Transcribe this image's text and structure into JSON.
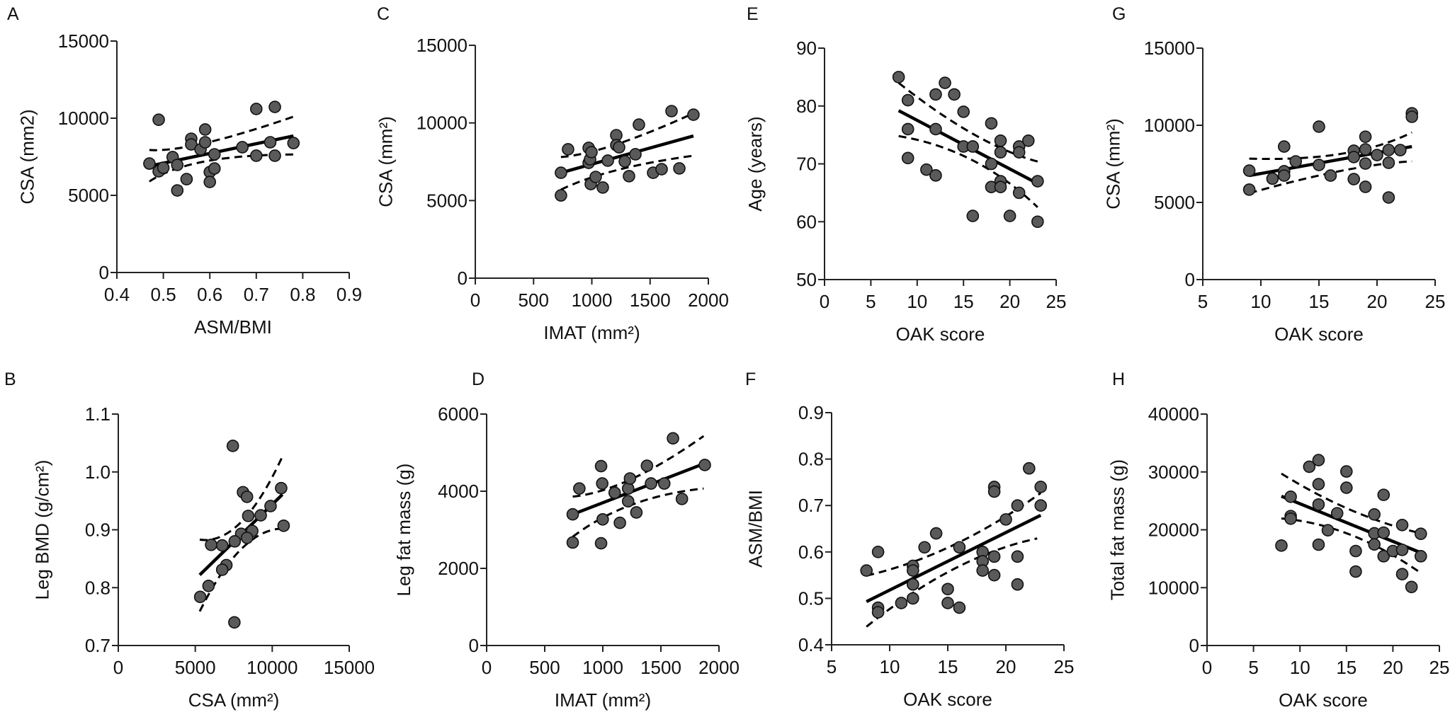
{
  "style": {
    "marker_fill": "#5a5a5a",
    "marker_stroke": "#111111",
    "line_color": "#000000"
  },
  "chart_data": [
    {
      "panel": "A",
      "type": "scatter",
      "xlabel": "ASM/BMI",
      "ylabel": "CSA (mm2)",
      "xlim": [
        0.4,
        0.9
      ],
      "ylim": [
        0,
        15000
      ],
      "xticks": [
        "0.4",
        "0.5",
        "0.6",
        "0.7",
        "0.8",
        "0.9"
      ],
      "yticks": [
        "0",
        "5000",
        "10000",
        "15000"
      ],
      "points": [
        [
          0.47,
          7060
        ],
        [
          0.49,
          9900
        ],
        [
          0.49,
          6560
        ],
        [
          0.5,
          6790
        ],
        [
          0.52,
          7480
        ],
        [
          0.53,
          6970
        ],
        [
          0.53,
          5320
        ],
        [
          0.55,
          6050
        ],
        [
          0.56,
          8670
        ],
        [
          0.56,
          8300
        ],
        [
          0.58,
          7980
        ],
        [
          0.59,
          9270
        ],
        [
          0.59,
          8440
        ],
        [
          0.6,
          6510
        ],
        [
          0.6,
          5870
        ],
        [
          0.61,
          6740
        ],
        [
          0.61,
          7660
        ],
        [
          0.67,
          8120
        ],
        [
          0.7,
          10600
        ],
        [
          0.7,
          7570
        ],
        [
          0.73,
          8440
        ],
        [
          0.74,
          10730
        ],
        [
          0.74,
          7570
        ],
        [
          0.78,
          8390
        ]
      ],
      "fit": [
        [
          0.47,
          6900
        ],
        [
          0.78,
          8850
        ]
      ],
      "ci_upper": [
        [
          0.47,
          7940
        ],
        [
          0.59,
          8390
        ],
        [
          0.78,
          10100
        ]
      ],
      "ci_lower": [
        [
          0.47,
          5900
        ],
        [
          0.59,
          7200
        ],
        [
          0.78,
          7650
        ]
      ]
    },
    {
      "panel": "C",
      "type": "scatter",
      "xlabel": "IMAT (mm²)",
      "ylabel": "CSA (mm²)",
      "xlim": [
        0,
        2000
      ],
      "ylim": [
        0,
        15000
      ],
      "xticks": [
        "0",
        "500",
        "1000",
        "1500",
        "2000"
      ],
      "yticks": [
        "0",
        "5000",
        "10000",
        "15000"
      ],
      "points": [
        [
          735,
          6790
        ],
        [
          735,
          5330
        ],
        [
          796,
          8300
        ],
        [
          973,
          8390
        ],
        [
          973,
          7430
        ],
        [
          985,
          7660
        ],
        [
          997,
          8120
        ],
        [
          991,
          6060
        ],
        [
          1033,
          6520
        ],
        [
          1094,
          5840
        ],
        [
          1137,
          7570
        ],
        [
          1210,
          9210
        ],
        [
          1210,
          8570
        ],
        [
          1234,
          8430
        ],
        [
          1283,
          7520
        ],
        [
          1319,
          6570
        ],
        [
          1374,
          7980
        ],
        [
          1404,
          9890
        ],
        [
          1526,
          6790
        ],
        [
          1599,
          7020
        ],
        [
          1684,
          10760
        ],
        [
          1751,
          7070
        ],
        [
          1872,
          10530
        ]
      ],
      "fit": [
        [
          735,
          6790
        ],
        [
          1872,
          9160
        ]
      ],
      "ci_upper": [
        [
          735,
          7800
        ],
        [
          1210,
          8620
        ],
        [
          1872,
          10620
        ]
      ],
      "ci_lower": [
        [
          735,
          5700
        ],
        [
          1210,
          6950
        ],
        [
          1872,
          7890
        ]
      ]
    },
    {
      "panel": "E",
      "type": "scatter",
      "xlabel": "OAK score",
      "ylabel": "Age (years)",
      "xlim": [
        0,
        25
      ],
      "ylim": [
        50,
        90
      ],
      "xticks": [
        "0",
        "5",
        "10",
        "15",
        "20",
        "25"
      ],
      "yticks": [
        "50",
        "60",
        "70",
        "80",
        "90"
      ],
      "points": [
        [
          8,
          85
        ],
        [
          9,
          81
        ],
        [
          9,
          76
        ],
        [
          9,
          71
        ],
        [
          11,
          69
        ],
        [
          12,
          82
        ],
        [
          12,
          76
        ],
        [
          12,
          68
        ],
        [
          13,
          84
        ],
        [
          14,
          82
        ],
        [
          15,
          79
        ],
        [
          15,
          73
        ],
        [
          16,
          73
        ],
        [
          16,
          61
        ],
        [
          18,
          77
        ],
        [
          18,
          70
        ],
        [
          18,
          66
        ],
        [
          19,
          74
        ],
        [
          19,
          72
        ],
        [
          19,
          67
        ],
        [
          19,
          66
        ],
        [
          20,
          61
        ],
        [
          21,
          73
        ],
        [
          21,
          72
        ],
        [
          21,
          65
        ],
        [
          22,
          74
        ],
        [
          23,
          67
        ],
        [
          23,
          60
        ]
      ],
      "fit": [
        [
          8,
          79.2
        ],
        [
          23,
          66.6
        ]
      ],
      "ci_upper": [
        [
          8,
          84
        ],
        [
          16,
          75.2
        ],
        [
          23,
          70.4
        ]
      ],
      "ci_lower": [
        [
          8,
          74.8
        ],
        [
          16,
          70.6
        ],
        [
          23,
          62.5
        ]
      ]
    },
    {
      "panel": "G",
      "type": "scatter",
      "xlabel": "OAK score",
      "ylabel": "CSA (mm²)",
      "xlim": [
        5,
        25
      ],
      "ylim": [
        0,
        15000
      ],
      "xticks": [
        "5",
        "10",
        "15",
        "20",
        "25"
      ],
      "yticks": [
        "0",
        "5000",
        "10000",
        "15000"
      ],
      "points": [
        [
          9,
          7060
        ],
        [
          9,
          5830
        ],
        [
          11,
          6540
        ],
        [
          12,
          8620
        ],
        [
          12,
          7020
        ],
        [
          12,
          6740
        ],
        [
          13,
          7660
        ],
        [
          15,
          9910
        ],
        [
          15,
          7430
        ],
        [
          16,
          6740
        ],
        [
          18,
          8350
        ],
        [
          18,
          7940
        ],
        [
          18,
          6510
        ],
        [
          19,
          9260
        ],
        [
          19,
          8440
        ],
        [
          19,
          7520
        ],
        [
          19,
          6010
        ],
        [
          20,
          8070
        ],
        [
          21,
          8400
        ],
        [
          21,
          7570
        ],
        [
          21,
          5320
        ],
        [
          22,
          8390
        ],
        [
          23,
          10780
        ],
        [
          23,
          10550
        ]
      ],
      "fit": [
        [
          9,
          6740
        ],
        [
          23,
          8620
        ]
      ],
      "ci_upper": [
        [
          9,
          7840
        ],
        [
          17,
          8160
        ],
        [
          23,
          9540
        ]
      ],
      "ci_lower": [
        [
          9,
          5600
        ],
        [
          17,
          7060
        ],
        [
          23,
          7660
        ]
      ]
    },
    {
      "panel": "B",
      "type": "scatter",
      "xlabel": "CSA (mm²)",
      "ylabel": "Leg BMD (g/cm²)",
      "xlim": [
        0,
        15000
      ],
      "ylim": [
        0.7,
        1.1
      ],
      "xticks": [
        "0",
        "5000",
        "10000",
        "15000"
      ],
      "yticks": [
        "0.7",
        "0.8",
        "0.9",
        "1.0",
        "1.1"
      ],
      "points": [
        [
          7440,
          1.045
        ],
        [
          8100,
          0.965
        ],
        [
          8360,
          0.957
        ],
        [
          10580,
          0.972
        ],
        [
          8440,
          0.924
        ],
        [
          9250,
          0.925
        ],
        [
          9890,
          0.941
        ],
        [
          10740,
          0.907
        ],
        [
          8700,
          0.898
        ],
        [
          7980,
          0.893
        ],
        [
          8360,
          0.886
        ],
        [
          7560,
          0.88
        ],
        [
          6750,
          0.873
        ],
        [
          6030,
          0.874
        ],
        [
          7020,
          0.839
        ],
        [
          6750,
          0.831
        ],
        [
          5860,
          0.803
        ],
        [
          5320,
          0.784
        ],
        [
          7540,
          0.74
        ]
      ],
      "fit": [
        [
          5290,
          0.822
        ],
        [
          10660,
          0.961
        ]
      ],
      "ci_upper": [
        [
          5290,
          0.883
        ],
        [
          8000,
          0.914
        ],
        [
          10700,
          1.029
        ]
      ],
      "ci_lower": [
        [
          5290,
          0.759
        ],
        [
          8000,
          0.867
        ],
        [
          10740,
          0.902
        ]
      ]
    },
    {
      "panel": "D",
      "type": "scatter",
      "xlabel": "IMAT (mm²)",
      "ylabel": "Leg fat mass (g)",
      "xlim": [
        0,
        2000
      ],
      "ylim": [
        0,
        6000
      ],
      "xticks": [
        "0",
        "500",
        "1000",
        "1500",
        "2000"
      ],
      "yticks": [
        "0",
        "2000",
        "4000",
        "6000"
      ],
      "points": [
        [
          741,
          2670
        ],
        [
          741,
          3400
        ],
        [
          798,
          4070
        ],
        [
          985,
          4650
        ],
        [
          995,
          4200
        ],
        [
          985,
          2650
        ],
        [
          999,
          3270
        ],
        [
          1102,
          3960
        ],
        [
          1147,
          3180
        ],
        [
          1218,
          4070
        ],
        [
          1234,
          4330
        ],
        [
          1218,
          3740
        ],
        [
          1289,
          3450
        ],
        [
          1380,
          4660
        ],
        [
          1415,
          4200
        ],
        [
          1529,
          4200
        ],
        [
          1604,
          5370
        ],
        [
          1681,
          3800
        ],
        [
          1878,
          4680
        ]
      ],
      "fit": [
        [
          741,
          3400
        ],
        [
          1868,
          4710
        ]
      ],
      "ci_upper": [
        [
          741,
          3860
        ],
        [
          1250,
          4320
        ],
        [
          1868,
          5430
        ]
      ],
      "ci_lower": [
        [
          741,
          2820
        ],
        [
          1250,
          3650
        ],
        [
          1868,
          4070
        ]
      ]
    },
    {
      "panel": "F",
      "type": "scatter",
      "xlabel": "OAK score",
      "ylabel": "ASM/BMI",
      "xlim": [
        5,
        25
      ],
      "ylim": [
        0.4,
        0.9
      ],
      "xticks": [
        "5",
        "10",
        "15",
        "20",
        "25"
      ],
      "yticks": [
        "0.4",
        "0.5",
        "0.6",
        "0.7",
        "0.8",
        "0.9"
      ],
      "points": [
        [
          8,
          0.56
        ],
        [
          9,
          0.6
        ],
        [
          9,
          0.48
        ],
        [
          9,
          0.47
        ],
        [
          11,
          0.49
        ],
        [
          12,
          0.57
        ],
        [
          12,
          0.56
        ],
        [
          12,
          0.53
        ],
        [
          12,
          0.5
        ],
        [
          13,
          0.61
        ],
        [
          14,
          0.64
        ],
        [
          15,
          0.52
        ],
        [
          15,
          0.49
        ],
        [
          16,
          0.61
        ],
        [
          16,
          0.48
        ],
        [
          18,
          0.6
        ],
        [
          18,
          0.58
        ],
        [
          18,
          0.56
        ],
        [
          19,
          0.74
        ],
        [
          19,
          0.73
        ],
        [
          19,
          0.59
        ],
        [
          19,
          0.55
        ],
        [
          20,
          0.67
        ],
        [
          21,
          0.7
        ],
        [
          21,
          0.59
        ],
        [
          21,
          0.53
        ],
        [
          22,
          0.78
        ],
        [
          23,
          0.74
        ],
        [
          23,
          0.7
        ]
      ],
      "fit": [
        [
          8,
          0.493
        ],
        [
          23,
          0.679
        ]
      ],
      "ci_upper": [
        [
          8,
          0.549
        ],
        [
          15.5,
          0.615
        ],
        [
          23,
          0.727
        ]
      ],
      "ci_lower": [
        [
          8,
          0.439
        ],
        [
          15.5,
          0.563
        ],
        [
          22.7,
          0.629
        ]
      ]
    },
    {
      "panel": "H",
      "type": "scatter",
      "xlabel": "OAK score",
      "ylabel": "Total fat mass (g)",
      "xlim": [
        0,
        25
      ],
      "ylim": [
        0,
        40000
      ],
      "xticks": [
        "0",
        "5",
        "10",
        "15",
        "20",
        "25"
      ],
      "yticks": [
        "0",
        "10000",
        "20000",
        "30000",
        "40000"
      ],
      "points": [
        [
          8,
          17270
        ],
        [
          9,
          25710
        ],
        [
          9,
          22370
        ],
        [
          9,
          21920
        ],
        [
          11,
          30900
        ],
        [
          12,
          32040
        ],
        [
          12,
          27880
        ],
        [
          12,
          24370
        ],
        [
          12,
          17430
        ],
        [
          13,
          19920
        ],
        [
          14,
          22860
        ],
        [
          15,
          30080
        ],
        [
          15,
          27270
        ],
        [
          16,
          16330
        ],
        [
          16,
          12780
        ],
        [
          18,
          22650
        ],
        [
          18,
          19390
        ],
        [
          18,
          17470
        ],
        [
          19,
          26040
        ],
        [
          19,
          19510
        ],
        [
          19,
          15430
        ],
        [
          20,
          16330
        ],
        [
          21,
          20820
        ],
        [
          21,
          16530
        ],
        [
          21,
          12330
        ],
        [
          22,
          10120
        ],
        [
          23,
          19310
        ],
        [
          23,
          15430
        ]
      ],
      "fit": [
        [
          8,
          25800
        ],
        [
          23,
          16040
        ]
      ],
      "ci_upper": [
        [
          8,
          29710
        ],
        [
          15.5,
          23400
        ],
        [
          23,
          19390
        ]
      ],
      "ci_lower": [
        [
          8,
          21960
        ],
        [
          15.5,
          19100
        ],
        [
          23,
          12530
        ]
      ]
    }
  ]
}
